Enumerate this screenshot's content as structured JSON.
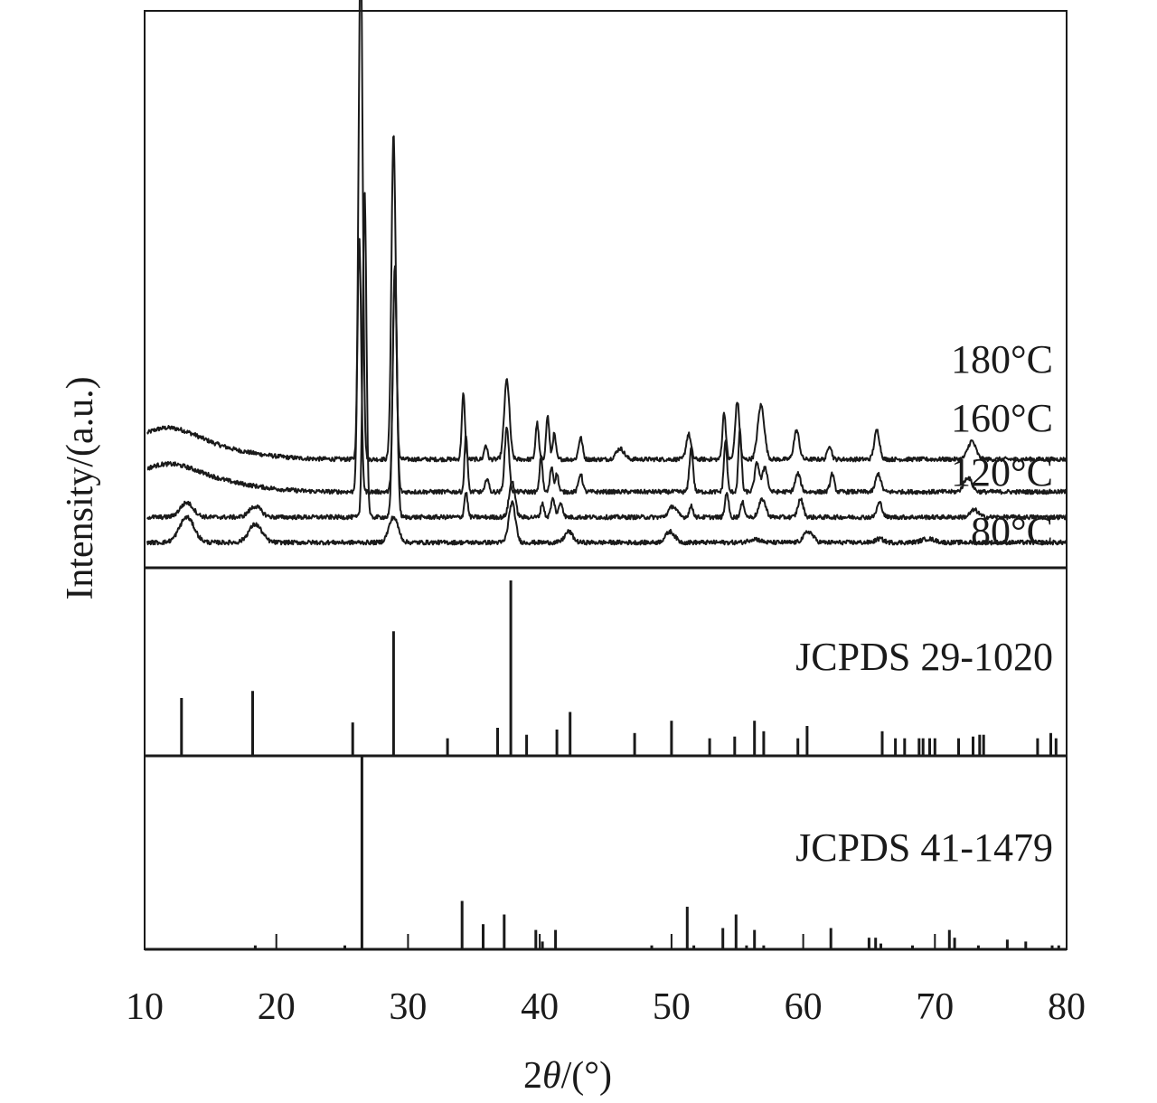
{
  "chart_data": {
    "type": "line",
    "xlabel": "2θ/(°)",
    "xlabel_prefix": "2",
    "xlabel_theta": "θ",
    "xlabel_suffix": "/(°)",
    "ylabel": "Intensity/(a.u.)",
    "xlim": [
      10,
      80
    ],
    "xticks": [
      "10",
      "20",
      "30",
      "40",
      "50",
      "60",
      "70",
      "80"
    ],
    "grid": false,
    "line_color": "#1a1a1a",
    "panels": {
      "patterns": {
        "series": [
          {
            "name": "180°C",
            "baseline": 0.26,
            "hump": [
              [
                11.5,
                0.08,
                2.5
              ],
              [
                16,
                0.02,
                3
              ]
            ],
            "peaks": [
              [
                26.4,
                1.45,
                0.15
              ],
              [
                28.9,
                0.9,
                0.16
              ],
              [
                34.2,
                0.18,
                0.12
              ],
              [
                35.9,
                0.04,
                0.12
              ],
              [
                37.5,
                0.22,
                0.2
              ],
              [
                39.8,
                0.1,
                0.12
              ],
              [
                40.6,
                0.12,
                0.12
              ],
              [
                41.1,
                0.07,
                0.12
              ],
              [
                43.1,
                0.06,
                0.15
              ],
              [
                46.1,
                0.03,
                0.3
              ],
              [
                51.3,
                0.07,
                0.18
              ],
              [
                54.0,
                0.13,
                0.13
              ],
              [
                55.0,
                0.16,
                0.16
              ],
              [
                56.8,
                0.15,
                0.25
              ],
              [
                59.5,
                0.08,
                0.2
              ],
              [
                62.0,
                0.04,
                0.15
              ],
              [
                65.6,
                0.08,
                0.2
              ],
              [
                72.8,
                0.05,
                0.3
              ]
            ]
          },
          {
            "name": "160°C",
            "baseline": 0.17,
            "hump": [
              [
                11.5,
                0.07,
                2.5
              ],
              [
                16,
                0.02,
                3
              ]
            ],
            "peaks": [
              [
                26.3,
                0.7,
                0.14
              ],
              [
                29.0,
                0.6,
                0.15
              ],
              [
                34.4,
                0.16,
                0.11
              ],
              [
                36.0,
                0.04,
                0.12
              ],
              [
                37.5,
                0.18,
                0.16
              ],
              [
                40.1,
                0.1,
                0.11
              ],
              [
                40.9,
                0.07,
                0.12
              ],
              [
                41.3,
                0.05,
                0.12
              ],
              [
                43.1,
                0.05,
                0.15
              ],
              [
                51.5,
                0.12,
                0.14
              ],
              [
                54.1,
                0.14,
                0.12
              ],
              [
                55.2,
                0.17,
                0.12
              ],
              [
                56.5,
                0.08,
                0.18
              ],
              [
                57.1,
                0.07,
                0.18
              ],
              [
                59.6,
                0.05,
                0.2
              ],
              [
                62.2,
                0.05,
                0.15
              ],
              [
                65.7,
                0.05,
                0.2
              ],
              [
                72.5,
                0.04,
                0.3
              ]
            ]
          },
          {
            "name": "120°C",
            "baseline": 0.1,
            "hump": [
              [
                13.2,
                0.04,
                0.5
              ],
              [
                18.4,
                0.03,
                0.45
              ]
            ],
            "peaks": [
              [
                26.7,
                0.9,
                0.14
              ],
              [
                29.0,
                0.7,
                0.16
              ],
              [
                34.4,
                0.07,
                0.12
              ],
              [
                37.9,
                0.1,
                0.22
              ],
              [
                40.2,
                0.04,
                0.12
              ],
              [
                41.0,
                0.05,
                0.15
              ],
              [
                41.6,
                0.04,
                0.15
              ],
              [
                50.1,
                0.03,
                0.3
              ],
              [
                51.5,
                0.03,
                0.15
              ],
              [
                54.2,
                0.07,
                0.13
              ],
              [
                55.4,
                0.04,
                0.15
              ],
              [
                56.9,
                0.05,
                0.25
              ],
              [
                59.8,
                0.05,
                0.2
              ],
              [
                65.8,
                0.04,
                0.2
              ],
              [
                73.0,
                0.02,
                0.3
              ]
            ]
          },
          {
            "name": "80°C",
            "baseline": 0.03,
            "hump": [
              [
                13.2,
                0.07,
                0.55
              ],
              [
                18.4,
                0.05,
                0.5
              ]
            ],
            "peaks": [
              [
                28.9,
                0.07,
                0.35
              ],
              [
                37.9,
                0.11,
                0.25
              ],
              [
                42.2,
                0.03,
                0.3
              ],
              [
                49.9,
                0.03,
                0.35
              ],
              [
                56.3,
                0.01,
                0.4
              ],
              [
                60.4,
                0.03,
                0.35
              ],
              [
                65.8,
                0.01,
                0.3
              ],
              [
                69.5,
                0.01,
                0.5
              ]
            ]
          }
        ]
      },
      "references": [
        {
          "name": "JCPDS 29-1020",
          "lines": [
            [
              12.8,
              0.33
            ],
            [
              18.2,
              0.37
            ],
            [
              25.8,
              0.19
            ],
            [
              28.9,
              0.71
            ],
            [
              33.0,
              0.1
            ],
            [
              36.8,
              0.16
            ],
            [
              37.8,
              1.0
            ],
            [
              39.0,
              0.12
            ],
            [
              41.3,
              0.15
            ],
            [
              42.3,
              0.25
            ],
            [
              47.2,
              0.13
            ],
            [
              50.0,
              0.2
            ],
            [
              52.9,
              0.1
            ],
            [
              54.8,
              0.11
            ],
            [
              56.3,
              0.2
            ],
            [
              57.0,
              0.14
            ],
            [
              59.6,
              0.1
            ],
            [
              60.3,
              0.17
            ],
            [
              66.0,
              0.14
            ],
            [
              67.0,
              0.1
            ],
            [
              67.7,
              0.1
            ],
            [
              68.8,
              0.1
            ],
            [
              69.1,
              0.1
            ],
            [
              69.6,
              0.1
            ],
            [
              70.0,
              0.1
            ],
            [
              71.8,
              0.1
            ],
            [
              72.9,
              0.11
            ],
            [
              73.4,
              0.12
            ],
            [
              73.7,
              0.12
            ],
            [
              77.8,
              0.1
            ],
            [
              78.8,
              0.13
            ],
            [
              79.2,
              0.1
            ]
          ]
        },
        {
          "name": "JCPDS 41-1479",
          "lines": [
            [
              18.4,
              0.02
            ],
            [
              25.2,
              0.02
            ],
            [
              26.5,
              1.0
            ],
            [
              34.1,
              0.25
            ],
            [
              35.7,
              0.13
            ],
            [
              37.3,
              0.18
            ],
            [
              39.7,
              0.1
            ],
            [
              40.2,
              0.04
            ],
            [
              41.2,
              0.1
            ],
            [
              48.5,
              0.02
            ],
            [
              51.2,
              0.22
            ],
            [
              51.7,
              0.02
            ],
            [
              53.9,
              0.11
            ],
            [
              54.9,
              0.18
            ],
            [
              55.7,
              0.02
            ],
            [
              56.3,
              0.1
            ],
            [
              57.0,
              0.02
            ],
            [
              62.1,
              0.11
            ],
            [
              65.0,
              0.06
            ],
            [
              65.5,
              0.06
            ],
            [
              65.9,
              0.03
            ],
            [
              68.3,
              0.02
            ],
            [
              71.1,
              0.1
            ],
            [
              71.5,
              0.06
            ],
            [
              73.3,
              0.02
            ],
            [
              75.5,
              0.05
            ],
            [
              76.9,
              0.04
            ],
            [
              78.9,
              0.02
            ],
            [
              79.4,
              0.02
            ]
          ]
        }
      ]
    }
  }
}
